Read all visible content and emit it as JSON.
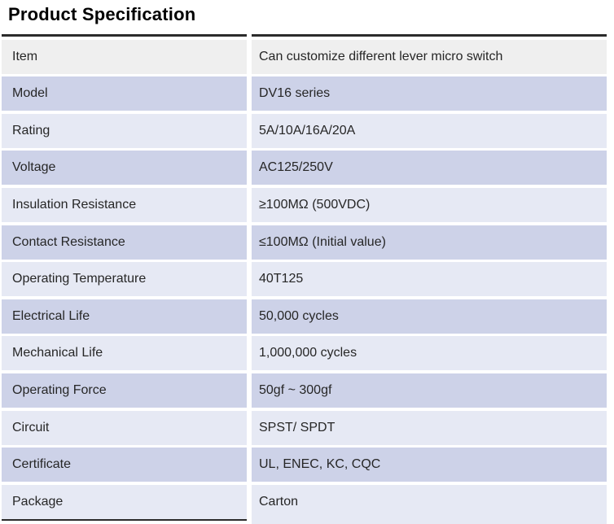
{
  "page": {
    "title": "Product Specification"
  },
  "colors": {
    "row-medium": "#cdd2e8",
    "row-light": "#e6e9f4",
    "row-gray": "#efefef",
    "border-dark": "#2b2b2b",
    "text": "#262626",
    "page-bg": "#ffffff"
  },
  "table": {
    "rows": [
      {
        "label": "Item",
        "value": "Can customize different lever micro switch"
      },
      {
        "label": "Model",
        "value": "DV16 series"
      },
      {
        "label": "Rating",
        "value": "5A/10A/16A/20A"
      },
      {
        "label": "Voltage",
        "value": "AC125/250V"
      },
      {
        "label": "Insulation Resistance",
        "value": "≥100MΩ (500VDC)"
      },
      {
        "label": "Contact Resistance",
        "value": "≤100MΩ (Initial value)"
      },
      {
        "label": "Operating Temperature",
        "value": "40T125"
      },
      {
        "label": "Electrical Life",
        "value": "50,000 cycles"
      },
      {
        "label": "Mechanical Life",
        "value": "1,000,000 cycles"
      },
      {
        "label": "Operating Force",
        "value": "50gf ~ 300gf"
      },
      {
        "label": "Circuit",
        "value": "SPST/ SPDT"
      },
      {
        "label": "Certificate",
        "value": "UL, ENEC, KC, CQC"
      },
      {
        "label": "Package",
        "value": "Carton"
      }
    ]
  }
}
